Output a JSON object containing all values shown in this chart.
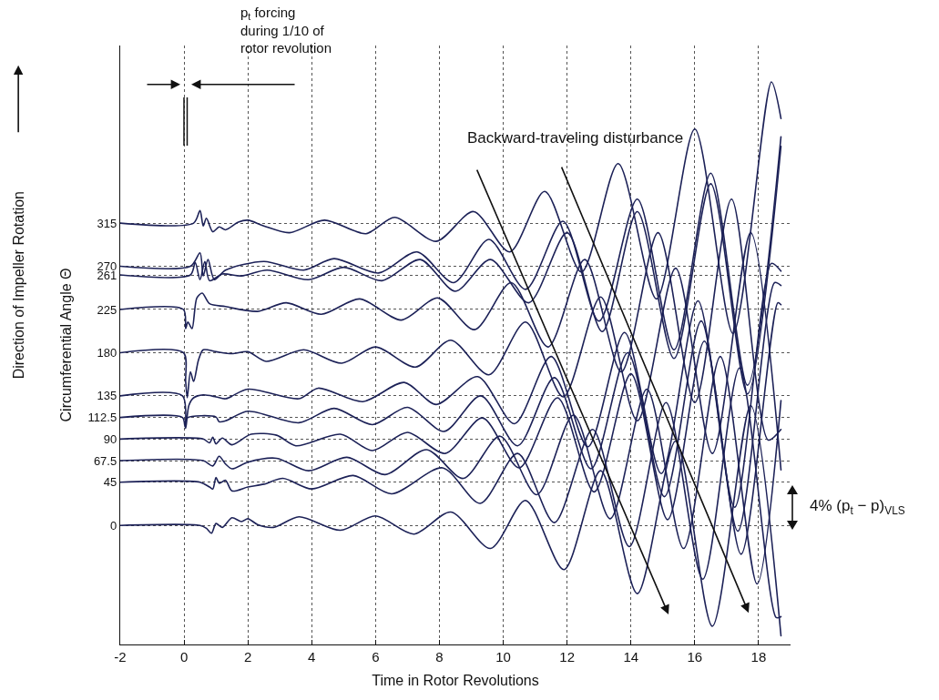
{
  "chart_data": {
    "type": "line",
    "xlabel": "Time in Rotor Revolutions",
    "ylabel": "Circumferential Angle Θ",
    "annotations": [
      "p$_{t}$ forcing\nduring 1/10 of\nrotor revolution",
      "Backward-traveling disturbance",
      "4% (p$_{t}$ − p)$_{VLS}$",
      "Direction of Impeller Rotation"
    ],
    "xlim": [
      -2,
      19
    ],
    "xticks": [
      -2,
      0,
      2,
      4,
      6,
      8,
      10,
      12,
      14,
      16,
      18
    ],
    "ylim": [
      -124,
      500
    ],
    "yticks": [
      0,
      45,
      67.5,
      90,
      112.5,
      135,
      180,
      225,
      261,
      270,
      315
    ],
    "grid": true,
    "marker": "none",
    "line_style": "solid",
    "series": [
      {
        "color": "#1c2157",
        "x": [
          -2,
          0.5,
          0.7,
          0.86,
          1.0,
          1.2,
          1.5,
          1.8,
          2.0,
          2.3,
          2.8,
          3.6,
          4.9,
          6.0,
          7.2,
          8.36,
          9.6,
          10.7,
          11.9,
          13.05,
          14.2,
          15.4,
          16.55,
          17.75,
          18.7
        ],
        "values": [
          0,
          0,
          -3,
          -8,
          2,
          -2,
          8,
          4,
          7,
          1,
          -2,
          9,
          -5,
          10,
          -9,
          14,
          -24,
          26,
          -46,
          57,
          -71,
          88,
          -105,
          125,
          -115
        ]
      },
      {
        "color": "#1c2157",
        "x": [
          -2,
          0.5,
          0.8,
          0.9,
          1.0,
          1.1,
          1.3,
          1.5,
          2.0,
          2.5,
          3.1,
          4.0,
          5.3,
          6.5,
          8.1,
          9.28,
          10.45,
          11.6,
          12.8,
          13.95,
          15.1,
          16.25,
          17.4,
          18.55,
          18.7
        ],
        "values": [
          45,
          45,
          40,
          38,
          50,
          44,
          47,
          36,
          40,
          43,
          49,
          38,
          52,
          33,
          60,
          23,
          75,
          3,
          100,
          -22,
          128,
          -56,
          164,
          -96,
          -95
        ]
      },
      {
        "color": "#1c2157",
        "x": [
          -2,
          0.6,
          0.9,
          1.1,
          1.3,
          1.5,
          2.0,
          2.9,
          3.9,
          5.1,
          6.3,
          7.6,
          8.75,
          9.9,
          11.05,
          12.2,
          13.35,
          14.5,
          15.65,
          16.8,
          17.95,
          18.7
        ],
        "values": [
          67.5,
          67.5,
          62,
          72,
          64,
          59,
          66,
          70,
          57,
          71,
          53,
          79,
          49,
          93,
          32,
          115,
          7,
          142,
          -24,
          176,
          -61,
          130
        ]
      },
      {
        "color": "#1c2157",
        "x": [
          -2,
          0.6,
          0.8,
          0.9,
          1.0,
          1.2,
          1.5,
          2.1,
          2.9,
          3.5,
          4.9,
          5.9,
          7.0,
          8.18,
          9.35,
          10.5,
          11.7,
          12.85,
          14.0,
          15.15,
          16.3,
          17.45,
          18.6,
          18.7
        ],
        "values": [
          90,
          90,
          86,
          92,
          85,
          91,
          84,
          95,
          94,
          83,
          95,
          78,
          97,
          75,
          112,
          60,
          133,
          35,
          158,
          6,
          192,
          -30,
          232,
          230
        ]
      },
      {
        "color": "#1c2157",
        "x": [
          -2,
          -0.05,
          0.03,
          0.1,
          1.0,
          1.1,
          1.3,
          2.0,
          3.6,
          4.7,
          5.9,
          7.0,
          8.15,
          9.3,
          10.45,
          11.6,
          12.75,
          13.9,
          15.05,
          16.2,
          17.35,
          18.5,
          18.7
        ],
        "values": [
          112.5,
          112.5,
          103,
          112,
          113,
          108,
          109,
          119,
          107,
          122,
          105,
          123,
          98,
          135,
          83,
          154,
          59,
          180,
          30,
          213,
          -6,
          253,
          250
        ]
      },
      {
        "color": "#1c2157",
        "x": [
          -2,
          -0.05,
          0.05,
          0.15,
          0.3,
          0.6,
          1.0,
          1.3,
          2.0,
          3.6,
          4.2,
          5.6,
          6.9,
          7.9,
          9.2,
          10.35,
          11.5,
          12.65,
          13.8,
          14.95,
          16.1,
          17.25,
          18.4,
          18.7
        ],
        "values": [
          135,
          135,
          101,
          125,
          133,
          136,
          134,
          132,
          142,
          132,
          143,
          129,
          149,
          126,
          155,
          106,
          176,
          82,
          201,
          54,
          234,
          19,
          273,
          265
        ]
      },
      {
        "color": "#1c2157",
        "x": [
          -2,
          -0.02,
          0.05,
          0.1,
          0.2,
          0.3,
          0.45,
          0.6,
          1.0,
          1.5,
          2.0,
          2.57,
          3.75,
          4.94,
          6.0,
          7.25,
          8.36,
          9.55,
          10.7,
          11.88,
          13.05,
          14.2,
          15.4,
          16.55,
          17.75,
          18.7
        ],
        "values": [
          180,
          180,
          150,
          133,
          160,
          150,
          172,
          183,
          181,
          179,
          181,
          171,
          183,
          169,
          186,
          165,
          193,
          157,
          212,
          134,
          238,
          109,
          268,
          75,
          305,
          58
        ]
      },
      {
        "color": "#1c2157",
        "x": [
          -2,
          -0.02,
          0.05,
          0.12,
          0.25,
          0.4,
          0.57,
          0.8,
          1.3,
          2.3,
          3.2,
          4.3,
          5.5,
          6.8,
          7.95,
          9.1,
          10.25,
          11.4,
          12.55,
          13.7,
          14.85,
          16.0,
          17.15,
          18.3,
          18.7
        ],
        "values": [
          225,
          225,
          205,
          212,
          205,
          237,
          242,
          231,
          228,
          223,
          232,
          220,
          236,
          214,
          237,
          204,
          253,
          186,
          277,
          160,
          305,
          128,
          340,
          89,
          100
        ]
      },
      {
        "color": "#1c2157",
        "x": [
          -2,
          0.2,
          0.35,
          0.5,
          0.65,
          0.8,
          1.2,
          1.8,
          2.6,
          3.9,
          5.0,
          6.2,
          7.4,
          8.5,
          9.6,
          10.8,
          12.0,
          13.1,
          14.2,
          15.35,
          16.5,
          17.65,
          18.7
        ],
        "values": [
          261,
          261,
          274,
          256,
          275,
          255,
          262,
          260,
          266,
          256,
          269,
          255,
          277,
          244,
          277,
          232,
          305,
          202,
          327,
          174,
          356,
          137,
          395
        ]
      },
      {
        "color": "#1c2157",
        "x": [
          -2,
          0.2,
          0.5,
          0.6,
          0.75,
          0.95,
          1.3,
          2.5,
          3.75,
          4.7,
          6.1,
          7.3,
          8.45,
          9.55,
          10.7,
          11.87,
          13.0,
          14.2,
          15.35,
          16.5,
          17.65,
          18.7
        ],
        "values": [
          270,
          270,
          284,
          260,
          277,
          256,
          266,
          275,
          266,
          278,
          263,
          285,
          253,
          298,
          246,
          317,
          213,
          340,
          183,
          367,
          146,
          405
        ]
      },
      {
        "color": "#1c2157",
        "x": [
          -2,
          0.3,
          0.5,
          0.6,
          0.7,
          0.9,
          1.1,
          1.3,
          1.7,
          2.0,
          2.5,
          3.3,
          4.4,
          5.7,
          6.6,
          7.9,
          9.07,
          10.2,
          11.3,
          12.45,
          13.6,
          14.8,
          16.0,
          17.2,
          18.4,
          18.7
        ],
        "values": [
          315,
          315,
          328,
          312,
          320,
          306,
          311,
          308,
          316,
          318,
          312,
          305,
          318,
          304,
          321,
          296,
          327,
          285,
          348,
          264,
          377,
          236,
          413,
          200,
          462,
          424
        ]
      }
    ]
  }
}
